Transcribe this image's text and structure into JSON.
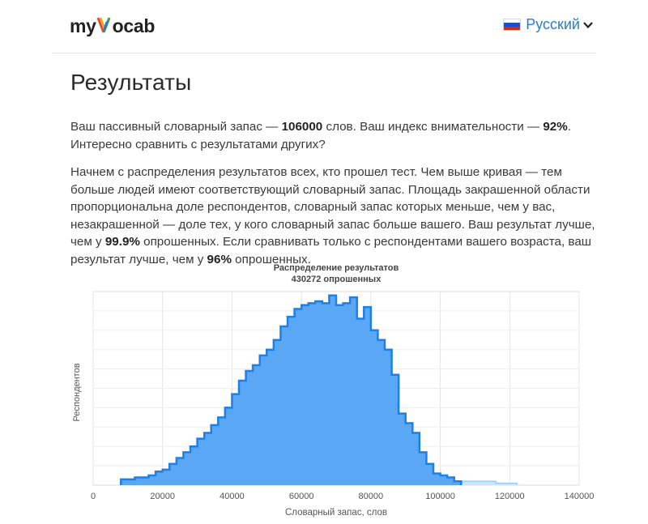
{
  "header": {
    "logo_text_prefix": "my",
    "logo_text_suffix": "ocab",
    "language": {
      "label": "Русский",
      "flag_colors": [
        "#ffffff",
        "#1f4fc8",
        "#d52b1e"
      ]
    }
  },
  "page_title": "Результаты",
  "summary": {
    "t1": "Ваш пассивный словарный запас — ",
    "vocab": "106000",
    "t2": " слов. Ваш индекс внимательности — ",
    "attention": "92%",
    "t3": ".",
    "t4": "Интересно сравнить с результатами других?"
  },
  "explanation": {
    "t1": "Начнем с распределения результатов всех, кто прошел тест. Чем выше кривая — тем больше людей имеют соответствующий словарный запас. Площадь закрашенной области пропорциональна доле респондентов, словарный запас которых меньше, чем у вас, незакрашенной — доле тех, у кого словарный запас больше вашего. Ваш результат лучше, чем у ",
    "pct_all": "99.9%",
    "t2": " опрошенных. Если сравнивать только с респондентами вашего возраста, ваш результат лучше, чем у ",
    "pct_age": "96%",
    "t3": " опрошенных."
  },
  "chart_data": {
    "type": "area",
    "title": "Распределение результатов",
    "subtitle": "430272 опрошенных",
    "xlabel": "Словарный запас, слов",
    "ylabel": "Респондентов",
    "xlim": [
      0,
      140000
    ],
    "ylim": [
      0,
      100
    ],
    "x_ticks": [
      0,
      20000,
      40000,
      60000,
      80000,
      100000,
      120000,
      140000
    ],
    "grid": true,
    "colors": {
      "filled": "#5aa8f5",
      "filled_line": "#1e7fe6",
      "unfilled": "#cde5fb",
      "unfilled_line": "#9cccf5"
    },
    "user_value": 106000,
    "bin_width": 2000,
    "bins_start": 8000,
    "values": [
      3,
      3,
      4,
      4,
      5,
      7,
      8,
      11,
      14,
      17,
      20,
      24,
      27,
      31,
      35,
      40,
      47,
      54,
      59,
      62,
      67,
      70,
      75,
      82,
      87,
      91,
      93,
      94,
      95,
      94,
      98,
      93,
      94,
      97,
      86,
      92,
      80,
      75,
      70,
      57,
      37,
      32,
      27,
      17,
      11,
      6,
      5,
      4,
      2,
      2,
      2,
      2,
      2,
      2,
      1,
      1,
      1
    ]
  }
}
